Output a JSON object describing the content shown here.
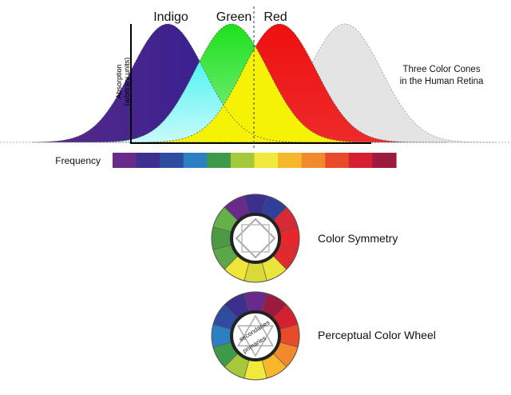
{
  "cones": {
    "labels": [
      "Indigo",
      "Green",
      "Red"
    ],
    "y_axis_label_line1": "Absorption",
    "y_axis_label_line2": "(arbitrary units)",
    "caption_line1": "Three Color Cones",
    "caption_line2": "in the Human Retina",
    "frequency_label": "Frequency",
    "curve_colors": {
      "indigo": "#2a1aa8",
      "green": "#22dd22",
      "red": "#ee1111",
      "ghost": "#e2e2e2"
    },
    "spectrum": [
      "#6a2a8c",
      "#3c2f8e",
      "#2f4da0",
      "#2c7fc2",
      "#3d9a4a",
      "#a6c93a",
      "#f1e93b",
      "#f6b72a",
      "#f08a2a",
      "#e84a2a",
      "#d62030",
      "#9c1a3e"
    ]
  },
  "wheels": [
    {
      "caption": "Color Symmetry",
      "segments": [
        "#6a2a8c",
        "#3c2f8e",
        "#2f3f9a",
        "#d72a35",
        "#e8262d",
        "#e02a2e",
        "#eae53a",
        "#d9d93a",
        "#f0e63a",
        "#5aa848",
        "#4c9a44",
        "#66b04a"
      ],
      "inner_labels": []
    },
    {
      "caption": "Perceptual Color Wheel",
      "segments": [
        "#3c2f8e",
        "#6a2a8c",
        "#9c1a3e",
        "#d62030",
        "#e84a2a",
        "#f08a2a",
        "#f6b72a",
        "#f1e93b",
        "#a6c93a",
        "#3d9a4a",
        "#2c7fc2",
        "#2f4da0"
      ],
      "inner_labels": [
        "secondaries",
        "primaries"
      ]
    }
  ]
}
